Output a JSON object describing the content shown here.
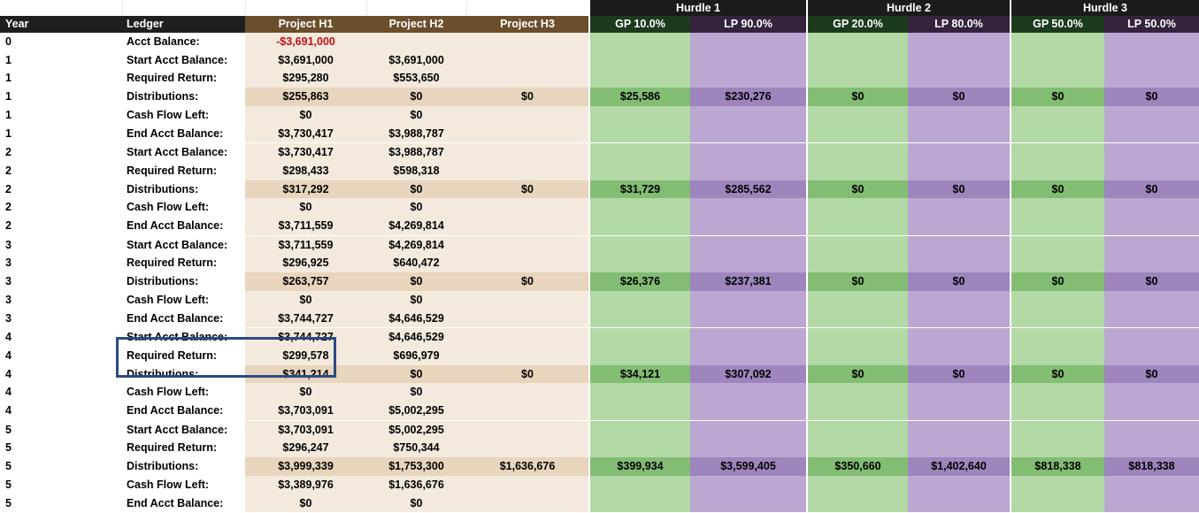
{
  "hurdle_headers": [
    {
      "label": "Hurdle 1"
    },
    {
      "label": "Hurdle 2"
    },
    {
      "label": "Hurdle 3"
    }
  ],
  "columns": [
    "Year",
    "Ledger",
    "Project H1",
    "Project H2",
    "Project H3",
    "GP 10.0%",
    "LP 90.0%",
    "GP 20.0%",
    "LP 80.0%",
    "GP 50.0%",
    "LP 50.0%"
  ],
  "rows": [
    {
      "year": "0",
      "label": "Acct  Balance:",
      "h1": "-$3,691,000",
      "h2": "",
      "h3": "",
      "gp1": "",
      "lp1": "",
      "gp2": "",
      "lp2": "",
      "gp3": "",
      "lp3": ""
    },
    {
      "year": "1",
      "label": "Start Acct  Balance:",
      "h1": "$3,691,000",
      "h2": "$3,691,000",
      "h3": "",
      "gp1": "",
      "lp1": "",
      "gp2": "",
      "lp2": "",
      "gp3": "",
      "lp3": ""
    },
    {
      "year": "1",
      "label": "Required Return:",
      "h1": "$295,280",
      "h2": "$553,650",
      "h3": "",
      "gp1": "",
      "lp1": "",
      "gp2": "",
      "lp2": "",
      "gp3": "",
      "lp3": ""
    },
    {
      "year": "1",
      "label": "Distributions:",
      "h1": "$255,863",
      "h2": "$0",
      "h3": "$0",
      "gp1": "$25,586",
      "lp1": "$230,276",
      "gp2": "$0",
      "lp2": "$0",
      "gp3": "$0",
      "lp3": "$0"
    },
    {
      "year": "1",
      "label": "Cash Flow Left:",
      "h1": "$0",
      "h2": "$0",
      "h3": "",
      "gp1": "",
      "lp1": "",
      "gp2": "",
      "lp2": "",
      "gp3": "",
      "lp3": ""
    },
    {
      "year": "1",
      "label": "End Acct Balance:",
      "h1": "$3,730,417",
      "h2": "$3,988,787",
      "h3": "",
      "gp1": "",
      "lp1": "",
      "gp2": "",
      "lp2": "",
      "gp3": "",
      "lp3": ""
    },
    {
      "year": "2",
      "label": "Start Acct  Balance:",
      "h1": "$3,730,417",
      "h2": "$3,988,787",
      "h3": "",
      "gp1": "",
      "lp1": "",
      "gp2": "",
      "lp2": "",
      "gp3": "",
      "lp3": ""
    },
    {
      "year": "2",
      "label": "Required Return:",
      "h1": "$298,433",
      "h2": "$598,318",
      "h3": "",
      "gp1": "",
      "lp1": "",
      "gp2": "",
      "lp2": "",
      "gp3": "",
      "lp3": ""
    },
    {
      "year": "2",
      "label": "Distributions:",
      "h1": "$317,292",
      "h2": "$0",
      "h3": "$0",
      "gp1": "$31,729",
      "lp1": "$285,562",
      "gp2": "$0",
      "lp2": "$0",
      "gp3": "$0",
      "lp3": "$0"
    },
    {
      "year": "2",
      "label": "Cash Flow Left:",
      "h1": "$0",
      "h2": "$0",
      "h3": "",
      "gp1": "",
      "lp1": "",
      "gp2": "",
      "lp2": "",
      "gp3": "",
      "lp3": ""
    },
    {
      "year": "2",
      "label": "End Acct Balance:",
      "h1": "$3,711,559",
      "h2": "$4,269,814",
      "h3": "",
      "gp1": "",
      "lp1": "",
      "gp2": "",
      "lp2": "",
      "gp3": "",
      "lp3": ""
    },
    {
      "year": "3",
      "label": "Start Acct  Balance:",
      "h1": "$3,711,559",
      "h2": "$4,269,814",
      "h3": "",
      "gp1": "",
      "lp1": "",
      "gp2": "",
      "lp2": "",
      "gp3": "",
      "lp3": ""
    },
    {
      "year": "3",
      "label": "Required Return:",
      "h1": "$296,925",
      "h2": "$640,472",
      "h3": "",
      "gp1": "",
      "lp1": "",
      "gp2": "",
      "lp2": "",
      "gp3": "",
      "lp3": ""
    },
    {
      "year": "3",
      "label": "Distributions:",
      "h1": "$263,757",
      "h2": "$0",
      "h3": "$0",
      "gp1": "$26,376",
      "lp1": "$237,381",
      "gp2": "$0",
      "lp2": "$0",
      "gp3": "$0",
      "lp3": "$0"
    },
    {
      "year": "3",
      "label": "Cash Flow Left:",
      "h1": "$0",
      "h2": "$0",
      "h3": "",
      "gp1": "",
      "lp1": "",
      "gp2": "",
      "lp2": "",
      "gp3": "",
      "lp3": ""
    },
    {
      "year": "3",
      "label": "End Acct Balance:",
      "h1": "$3,744,727",
      "h2": "$4,646,529",
      "h3": "",
      "gp1": "",
      "lp1": "",
      "gp2": "",
      "lp2": "",
      "gp3": "",
      "lp3": ""
    },
    {
      "year": "4",
      "label": "Start Acct  Balance:",
      "h1": "$3,744,727",
      "h2": "$4,646,529",
      "h3": "",
      "gp1": "",
      "lp1": "",
      "gp2": "",
      "lp2": "",
      "gp3": "",
      "lp3": ""
    },
    {
      "year": "4",
      "label": "Required Return:",
      "h1": "$299,578",
      "h2": "$696,979",
      "h3": "",
      "gp1": "",
      "lp1": "",
      "gp2": "",
      "lp2": "",
      "gp3": "",
      "lp3": ""
    },
    {
      "year": "4",
      "label": "Distributions:",
      "h1": "$341,214",
      "h2": "$0",
      "h3": "$0",
      "gp1": "$34,121",
      "lp1": "$307,092",
      "gp2": "$0",
      "lp2": "$0",
      "gp3": "$0",
      "lp3": "$0"
    },
    {
      "year": "4",
      "label": "Cash Flow Left:",
      "h1": "$0",
      "h2": "$0",
      "h3": "",
      "gp1": "",
      "lp1": "",
      "gp2": "",
      "lp2": "",
      "gp3": "",
      "lp3": ""
    },
    {
      "year": "4",
      "label": "End Acct Balance:",
      "h1": "$3,703,091",
      "h2": "$5,002,295",
      "h3": "",
      "gp1": "",
      "lp1": "",
      "gp2": "",
      "lp2": "",
      "gp3": "",
      "lp3": ""
    },
    {
      "year": "5",
      "label": "Start Acct  Balance:",
      "h1": "$3,703,091",
      "h2": "$5,002,295",
      "h3": "",
      "gp1": "",
      "lp1": "",
      "gp2": "",
      "lp2": "",
      "gp3": "",
      "lp3": ""
    },
    {
      "year": "5",
      "label": "Required Return:",
      "h1": "$296,247",
      "h2": "$750,344",
      "h3": "",
      "gp1": "",
      "lp1": "",
      "gp2": "",
      "lp2": "",
      "gp3": "",
      "lp3": ""
    },
    {
      "year": "5",
      "label": "Distributions:",
      "h1": "$3,999,339",
      "h2": "$1,753,300",
      "h3": "$1,636,676",
      "gp1": "$399,934",
      "lp1": "$3,599,405",
      "gp2": "$350,660",
      "lp2": "$1,402,640",
      "gp3": "$818,338",
      "lp3": "$818,338"
    },
    {
      "year": "5",
      "label": "Cash Flow Left:",
      "h1": "$3,389,976",
      "h2": "$1,636,676",
      "h3": "",
      "gp1": "",
      "lp1": "",
      "gp2": "",
      "lp2": "",
      "gp3": "",
      "lp3": ""
    },
    {
      "year": "5",
      "label": "End Acct Balance:",
      "h1": "$0",
      "h2": "$0",
      "h3": "",
      "gp1": "",
      "lp1": "",
      "gp2": "",
      "lp2": "",
      "gp3": "",
      "lp3": ""
    }
  ],
  "colors": {
    "project_header": "#6b4e2c",
    "gp_fill": "#b3d9a6",
    "lp_fill": "#bba7d1",
    "highlight_border": "#2a4b82",
    "negative_text": "#c0101a"
  }
}
